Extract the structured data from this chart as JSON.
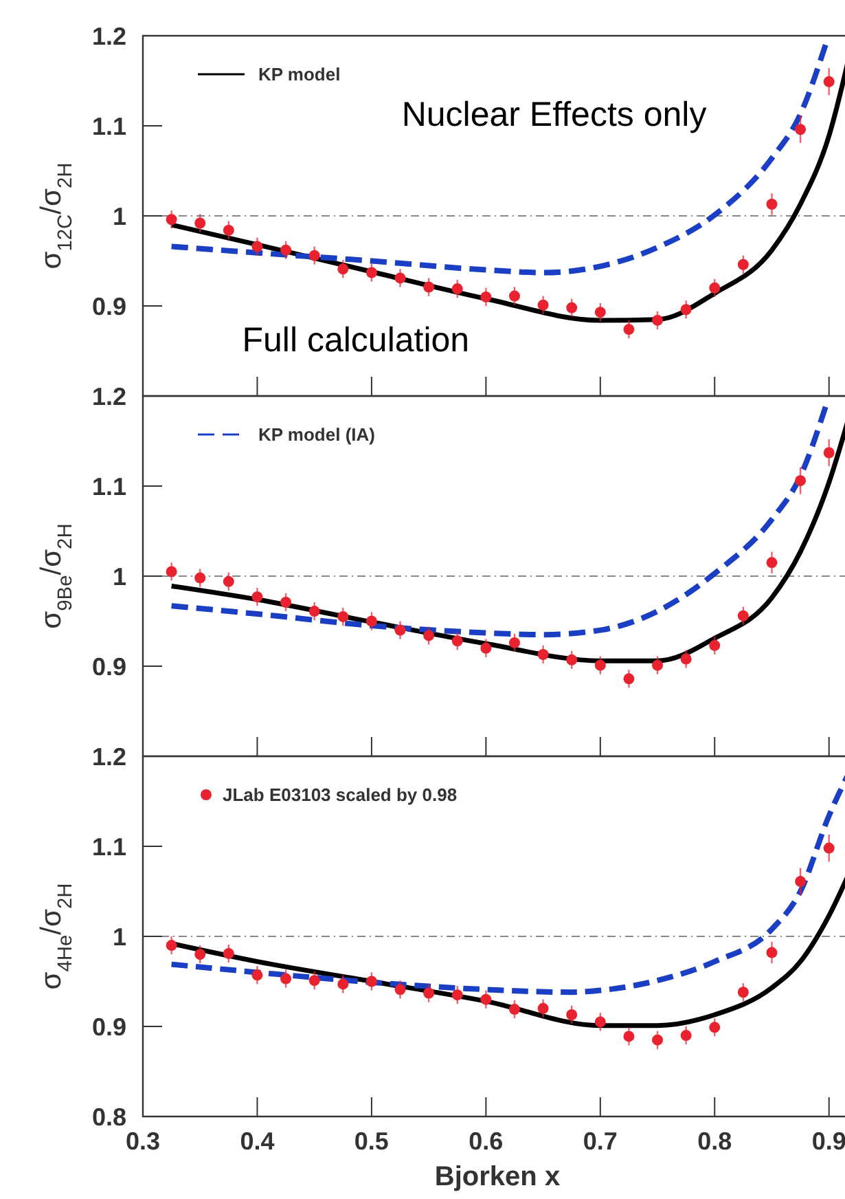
{
  "chart_data": [
    {
      "type": "line",
      "ylabel": "σ$_{12C}$/σ$_{2H}$",
      "annotations": [
        "Nuclear Effects only",
        "Full calculation"
      ],
      "xlim": [
        0.3,
        0.92
      ],
      "xticks": [
        0.3,
        0.4,
        0.5,
        0.6,
        0.7,
        0.8,
        0.9
      ],
      "ylim": [
        0.8,
        1.2
      ],
      "yticks": [
        0.9,
        1,
        1.1,
        1.2
      ],
      "tick_labels": "y",
      "legend": "top left",
      "grid": false,
      "ref_lines": [
        {
          "axis": "y",
          "value": 1,
          "color": "#888888",
          "line_style": "dashdot"
        }
      ],
      "series": [
        {
          "name": "KP model",
          "color": "#000000",
          "line_style": "solid",
          "x": [
            0.325,
            0.4,
            0.5,
            0.6,
            0.7,
            0.75,
            0.8,
            0.85,
            0.875,
            0.9,
            0.92
          ],
          "values": [
            0.99,
            0.968,
            0.938,
            0.908,
            0.884,
            0.885,
            0.914,
            0.962,
            1.013,
            1.089,
            1.19
          ]
        },
        {
          "color": "#1a3fc4",
          "line_style": "dashed",
          "x": [
            0.325,
            0.4,
            0.5,
            0.6,
            0.65,
            0.7,
            0.75,
            0.8,
            0.85,
            0.875,
            0.897
          ],
          "values": [
            0.966,
            0.959,
            0.95,
            0.94,
            0.937,
            0.944,
            0.965,
            1.001,
            1.064,
            1.113,
            1.19
          ]
        },
        {
          "type": "scatter",
          "color": "#e8222e",
          "marker": "circle",
          "x": [
            0.325,
            0.35,
            0.375,
            0.4,
            0.425,
            0.45,
            0.475,
            0.5,
            0.525,
            0.55,
            0.575,
            0.6,
            0.625,
            0.65,
            0.675,
            0.7,
            0.725,
            0.75,
            0.775,
            0.8,
            0.825,
            0.85,
            0.875,
            0.9
          ],
          "values": [
            0.996,
            0.992,
            0.984,
            0.966,
            0.962,
            0.956,
            0.941,
            0.937,
            0.931,
            0.921,
            0.919,
            0.91,
            0.911,
            0.901,
            0.898,
            0.893,
            0.874,
            0.884,
            0.896,
            0.92,
            0.946,
            1.013,
            1.096,
            1.149
          ],
          "errors": [
            0.01,
            0.01,
            0.01,
            0.01,
            0.01,
            0.01,
            0.01,
            0.01,
            0.01,
            0.01,
            0.01,
            0.01,
            0.01,
            0.01,
            0.01,
            0.01,
            0.01,
            0.01,
            0.01,
            0.01,
            0.01,
            0.012,
            0.015,
            0.015
          ]
        }
      ]
    },
    {
      "type": "line",
      "ylabel": "σ$_{9Be}$/σ$_{2H}$",
      "xlim": [
        0.3,
        0.92
      ],
      "xticks": [
        0.3,
        0.4,
        0.5,
        0.6,
        0.7,
        0.8,
        0.9
      ],
      "ylim": [
        0.8,
        1.2
      ],
      "yticks": [
        0.9,
        1,
        1.1,
        1.2
      ],
      "tick_labels": "y",
      "legend": "top left",
      "grid": false,
      "ref_lines": [
        {
          "axis": "y",
          "value": 1,
          "color": "#888888",
          "line_style": "dashdot"
        }
      ],
      "series": [
        {
          "color": "#000000",
          "line_style": "solid",
          "x": [
            0.325,
            0.4,
            0.5,
            0.6,
            0.7,
            0.75,
            0.8,
            0.85,
            0.875,
            0.9,
            0.92
          ],
          "values": [
            0.989,
            0.974,
            0.949,
            0.925,
            0.906,
            0.906,
            0.931,
            0.976,
            1.027,
            1.104,
            1.188
          ]
        },
        {
          "name": "KP model (IA)",
          "color": "#1a3fc4",
          "line_style": "dashed",
          "x": [
            0.325,
            0.4,
            0.5,
            0.6,
            0.65,
            0.7,
            0.75,
            0.8,
            0.85,
            0.875,
            0.897
          ],
          "values": [
            0.967,
            0.958,
            0.945,
            0.937,
            0.935,
            0.94,
            0.961,
            1.003,
            1.063,
            1.111,
            1.188
          ]
        },
        {
          "type": "scatter",
          "color": "#e8222e",
          "marker": "circle",
          "x": [
            0.325,
            0.35,
            0.375,
            0.4,
            0.425,
            0.45,
            0.475,
            0.5,
            0.525,
            0.55,
            0.575,
            0.6,
            0.625,
            0.65,
            0.675,
            0.7,
            0.725,
            0.75,
            0.775,
            0.8,
            0.825,
            0.85,
            0.875,
            0.9
          ],
          "values": [
            1.005,
            0.998,
            0.994,
            0.977,
            0.971,
            0.961,
            0.955,
            0.95,
            0.94,
            0.934,
            0.928,
            0.92,
            0.926,
            0.913,
            0.907,
            0.901,
            0.886,
            0.901,
            0.908,
            0.923,
            0.956,
            1.015,
            1.106,
            1.137
          ],
          "errors": [
            0.01,
            0.01,
            0.01,
            0.01,
            0.01,
            0.01,
            0.01,
            0.01,
            0.01,
            0.01,
            0.01,
            0.01,
            0.01,
            0.01,
            0.01,
            0.01,
            0.01,
            0.01,
            0.01,
            0.01,
            0.01,
            0.012,
            0.015,
            0.015
          ]
        }
      ]
    },
    {
      "type": "line",
      "ylabel": "σ$_{4He}$/σ$_{2H}$",
      "xlabel": "Bjorken x",
      "xlim": [
        0.3,
        0.92
      ],
      "xticks": [
        0.3,
        0.4,
        0.5,
        0.6,
        0.7,
        0.8,
        0.9
      ],
      "ylim": [
        0.8,
        1.2
      ],
      "yticks": [
        0.8,
        0.9,
        1,
        1.1,
        1.2
      ],
      "legend": "top left",
      "grid": false,
      "ref_lines": [
        {
          "axis": "y",
          "value": 1,
          "color": "#888888",
          "line_style": "dashdot"
        }
      ],
      "series": [
        {
          "color": "#000000",
          "line_style": "solid",
          "x": [
            0.325,
            0.4,
            0.5,
            0.6,
            0.7,
            0.75,
            0.8,
            0.85,
            0.875,
            0.9,
            0.92
          ],
          "values": [
            0.992,
            0.972,
            0.95,
            0.928,
            0.901,
            0.901,
            0.913,
            0.943,
            0.972,
            1.023,
            1.077
          ]
        },
        {
          "color": "#1a3fc4",
          "line_style": "dashed",
          "x": [
            0.325,
            0.4,
            0.5,
            0.6,
            0.675,
            0.7,
            0.75,
            0.8,
            0.85,
            0.875,
            0.9,
            0.92
          ],
          "values": [
            0.969,
            0.96,
            0.949,
            0.941,
            0.938,
            0.94,
            0.951,
            0.972,
            1.008,
            1.05,
            1.134,
            1.188
          ]
        },
        {
          "name": "JLab E03103 scaled by 0.98",
          "type": "scatter",
          "color": "#e8222e",
          "marker": "circle",
          "x": [
            0.325,
            0.35,
            0.375,
            0.4,
            0.425,
            0.45,
            0.475,
            0.5,
            0.525,
            0.55,
            0.575,
            0.6,
            0.625,
            0.65,
            0.675,
            0.7,
            0.725,
            0.75,
            0.775,
            0.8,
            0.825,
            0.85,
            0.875,
            0.9
          ],
          "values": [
            0.99,
            0.98,
            0.981,
            0.957,
            0.953,
            0.951,
            0.947,
            0.95,
            0.941,
            0.937,
            0.935,
            0.93,
            0.919,
            0.92,
            0.913,
            0.905,
            0.889,
            0.885,
            0.89,
            0.899,
            0.938,
            0.982,
            1.061,
            1.098
          ],
          "errors": [
            0.01,
            0.01,
            0.01,
            0.01,
            0.01,
            0.01,
            0.01,
            0.01,
            0.01,
            0.01,
            0.01,
            0.01,
            0.01,
            0.01,
            0.01,
            0.01,
            0.01,
            0.01,
            0.01,
            0.01,
            0.01,
            0.012,
            0.015,
            0.015
          ]
        }
      ]
    }
  ]
}
